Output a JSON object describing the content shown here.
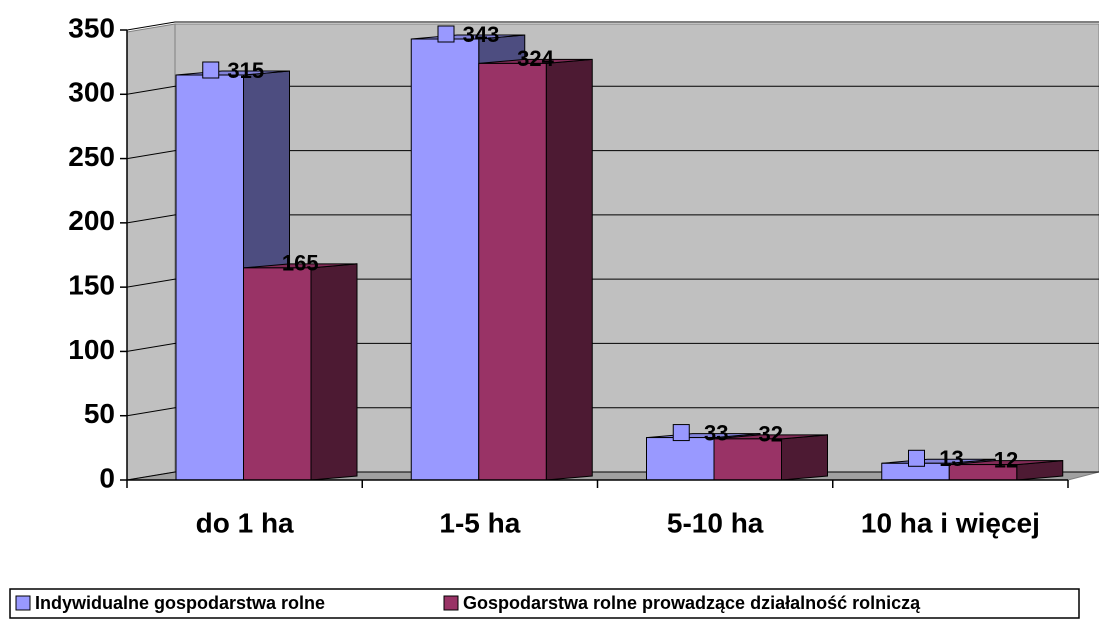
{
  "chart_data": {
    "type": "bar3d",
    "categories": [
      "do 1 ha",
      "1-5 ha",
      "5-10 ha",
      "10 ha i więcej"
    ],
    "series": [
      {
        "name": "Indywidualne gospodarstwa rolne",
        "color": "#9999ff",
        "values": [
          315,
          343,
          33,
          13
        ]
      },
      {
        "name": "Gospodarstwa rolne prowadzące działalność rolniczą",
        "color": "#993366",
        "values": [
          165,
          324,
          32,
          12
        ]
      }
    ],
    "ylim": [
      0,
      350
    ],
    "yticks": [
      0,
      50,
      100,
      150,
      200,
      250,
      300,
      350
    ],
    "grid": true,
    "legend": "bottom"
  }
}
